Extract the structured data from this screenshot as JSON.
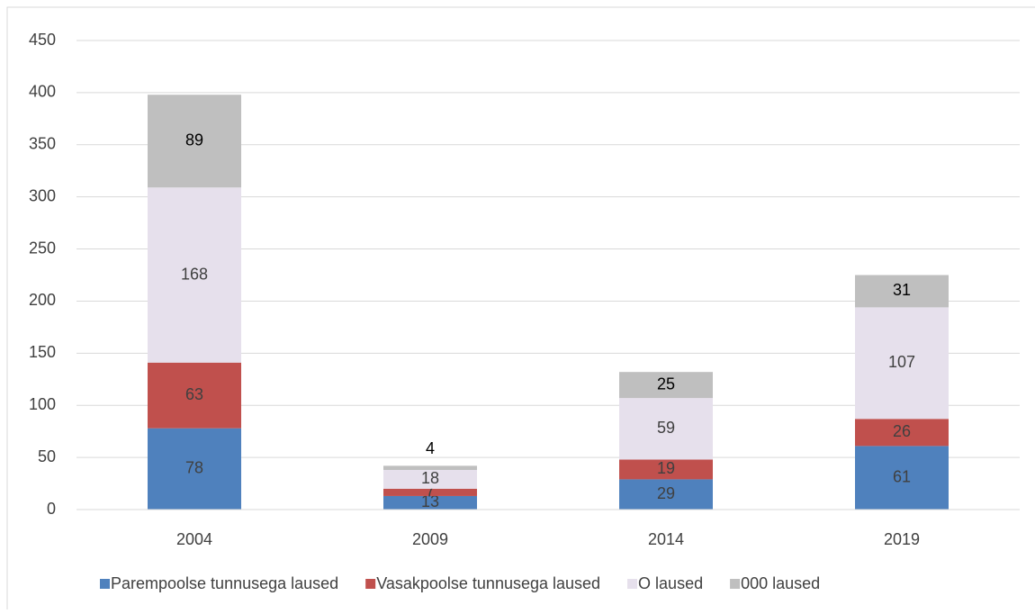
{
  "chart_data": {
    "type": "stacked_bar",
    "categories": [
      "2004",
      "2009",
      "2014",
      "2019"
    ],
    "series": [
      {
        "name": "Parempoolse tunnusega laused",
        "color": "#4f81bd",
        "values": [
          78,
          13,
          29,
          61
        ]
      },
      {
        "name": "Vasakpoolse tunnusega laused",
        "color": "#c0504d",
        "values": [
          63,
          7,
          19,
          26
        ]
      },
      {
        "name": "O laused",
        "color": "#e6e0ec",
        "values": [
          168,
          18,
          59,
          107
        ]
      },
      {
        "name": "000 laused",
        "color": "#bfbfbf",
        "values": [
          89,
          4,
          25,
          31
        ]
      }
    ],
    "ylim": [
      0,
      450
    ],
    "yticks": [
      0,
      50,
      100,
      150,
      200,
      250,
      300,
      350,
      400,
      450
    ],
    "grid": true,
    "legend": "bottom"
  }
}
